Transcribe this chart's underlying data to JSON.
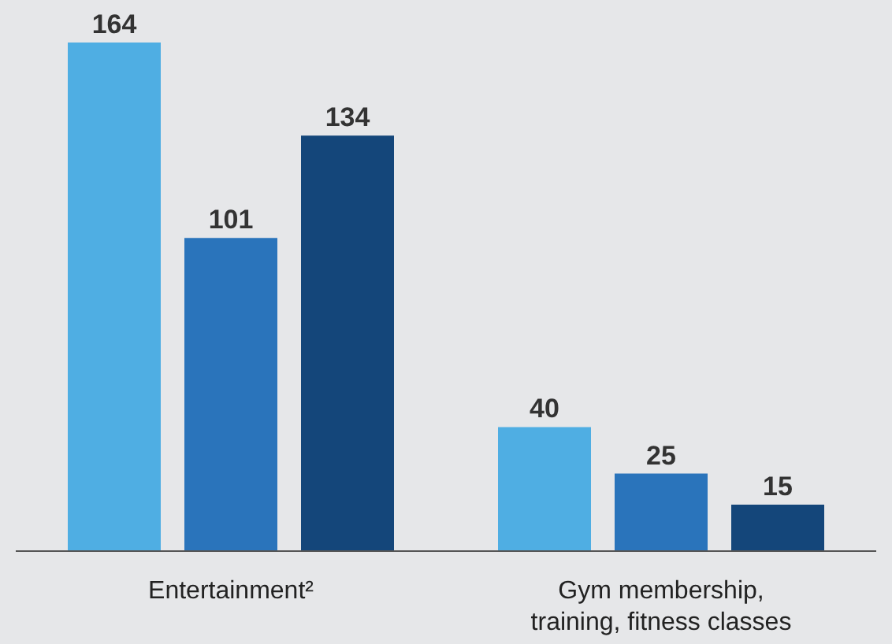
{
  "chart_data": {
    "type": "bar",
    "categories": [
      "Entertainment²",
      "Gym membership, training, fitness classes"
    ],
    "series": [
      {
        "color": "#4faee3",
        "values": [
          164,
          40
        ]
      },
      {
        "color": "#2a74bb",
        "values": [
          101,
          25
        ]
      },
      {
        "color": "#14467a",
        "values": [
          134,
          15
        ]
      }
    ],
    "data_labels": true,
    "grid": false,
    "legend": false,
    "tick_labels": "x"
  }
}
